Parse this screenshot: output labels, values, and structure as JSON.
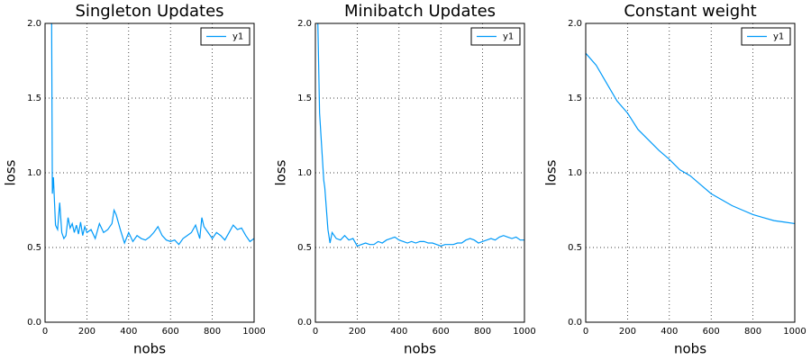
{
  "chart_data": [
    {
      "type": "line",
      "title": "Singleton Updates",
      "x_label": "nobs",
      "y_label": "loss",
      "x": [
        30,
        35,
        40,
        50,
        60,
        70,
        80,
        90,
        100,
        110,
        120,
        130,
        140,
        150,
        160,
        170,
        180,
        190,
        200,
        220,
        240,
        260,
        280,
        300,
        320,
        330,
        340,
        360,
        380,
        400,
        420,
        440,
        460,
        480,
        500,
        520,
        540,
        560,
        580,
        600,
        620,
        640,
        660,
        680,
        700,
        720,
        740,
        750,
        760,
        780,
        800,
        820,
        840,
        860,
        880,
        900,
        920,
        940,
        960,
        980,
        1000
      ],
      "series": [
        {
          "name": "y1",
          "color": "#009af9",
          "values": [
            2.5,
            0.86,
            0.97,
            0.65,
            0.62,
            0.8,
            0.6,
            0.56,
            0.58,
            0.7,
            0.63,
            0.66,
            0.6,
            0.65,
            0.59,
            0.67,
            0.58,
            0.64,
            0.6,
            0.62,
            0.56,
            0.66,
            0.6,
            0.62,
            0.66,
            0.75,
            0.72,
            0.62,
            0.53,
            0.6,
            0.54,
            0.58,
            0.56,
            0.55,
            0.57,
            0.6,
            0.64,
            0.58,
            0.55,
            0.54,
            0.55,
            0.52,
            0.56,
            0.58,
            0.6,
            0.65,
            0.56,
            0.7,
            0.64,
            0.6,
            0.56,
            0.6,
            0.58,
            0.55,
            0.6,
            0.65,
            0.62,
            0.63,
            0.58,
            0.54,
            0.56
          ]
        }
      ],
      "xlim": [
        0,
        1000
      ],
      "ylim": [
        0,
        2
      ],
      "xticks": [
        0,
        200,
        400,
        600,
        800,
        1000
      ],
      "yticks": [
        {
          "value": 0,
          "label": "0.0"
        },
        0.5,
        {
          "value": 1,
          "label": "1.0"
        },
        1.5,
        {
          "value": 2,
          "label": "2.0"
        }
      ],
      "grid": true,
      "legend": "upper right"
    },
    {
      "type": "line",
      "title": "Minibatch Updates",
      "x_label": "nobs",
      "y_label": "loss",
      "x": [
        5,
        20,
        40,
        45,
        60,
        70,
        80,
        100,
        120,
        140,
        160,
        180,
        200,
        220,
        240,
        260,
        280,
        300,
        320,
        340,
        360,
        380,
        400,
        420,
        440,
        460,
        480,
        500,
        520,
        540,
        560,
        580,
        600,
        620,
        640,
        660,
        680,
        700,
        720,
        740,
        760,
        780,
        800,
        820,
        840,
        860,
        880,
        900,
        920,
        940,
        960,
        980,
        1000
      ],
      "series": [
        {
          "name": "y1",
          "color": "#009af9",
          "values": [
            2.5,
            1.4,
            0.95,
            0.9,
            0.62,
            0.53,
            0.6,
            0.56,
            0.55,
            0.58,
            0.55,
            0.56,
            0.51,
            0.52,
            0.53,
            0.52,
            0.52,
            0.54,
            0.53,
            0.55,
            0.56,
            0.57,
            0.55,
            0.54,
            0.53,
            0.54,
            0.53,
            0.54,
            0.54,
            0.53,
            0.53,
            0.52,
            0.51,
            0.52,
            0.52,
            0.52,
            0.53,
            0.53,
            0.55,
            0.56,
            0.55,
            0.53,
            0.54,
            0.55,
            0.56,
            0.55,
            0.57,
            0.58,
            0.57,
            0.56,
            0.57,
            0.55,
            0.55
          ]
        }
      ],
      "xlim": [
        0,
        1000
      ],
      "ylim": [
        0,
        2
      ],
      "xticks": [
        0,
        200,
        400,
        600,
        800,
        1000
      ],
      "yticks": [
        {
          "value": 0,
          "label": "0.0"
        },
        0.5,
        {
          "value": 1,
          "label": "1.0"
        },
        1.5,
        {
          "value": 2,
          "label": "2.0"
        }
      ],
      "grid": true,
      "legend": "upper right"
    },
    {
      "type": "line",
      "title": "Constant weight",
      "x_label": "nobs",
      "y_label": "loss",
      "x": [
        0,
        50,
        100,
        150,
        200,
        250,
        300,
        350,
        400,
        450,
        500,
        550,
        600,
        650,
        700,
        750,
        800,
        850,
        900,
        950,
        1000
      ],
      "series": [
        {
          "name": "y1",
          "color": "#009af9",
          "values": [
            1.8,
            1.72,
            1.6,
            1.48,
            1.4,
            1.29,
            1.22,
            1.15,
            1.09,
            1.02,
            0.98,
            0.92,
            0.86,
            0.82,
            0.78,
            0.75,
            0.72,
            0.7,
            0.68,
            0.67,
            0.66
          ]
        }
      ],
      "xlim": [
        0,
        1000
      ],
      "ylim": [
        0,
        2
      ],
      "xticks": [
        0,
        200,
        400,
        600,
        800,
        1000
      ],
      "yticks": [
        {
          "value": 0,
          "label": "0.0"
        },
        0.5,
        {
          "value": 1,
          "label": "1.0"
        },
        1.5,
        {
          "value": 2,
          "label": "2.0"
        }
      ],
      "grid": true,
      "legend": "upper right"
    }
  ]
}
